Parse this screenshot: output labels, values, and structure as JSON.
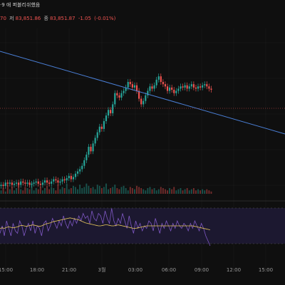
{
  "header": {
    "title": "·9 애 퍼블리쉬했음",
    "ohlc_prefix": "70",
    "close_label": "저",
    "close_value": "83,851.86",
    "last_label": "종",
    "last_value": "83,851.87",
    "change": "-1.05",
    "change_pct": "(-0.01%)"
  },
  "colors": {
    "background": "#0f0f0f",
    "up": "#26a69a",
    "down": "#ef5350",
    "trendline": "#4a7fd6",
    "rsi_line": "#7e57c2",
    "rsi_ma": "#e6c65a",
    "rsi_band": "#1c1830"
  },
  "chart_data": [
    {
      "type": "candlestick",
      "title": "",
      "x_tick_labels": [
        "15:00",
        "18:00",
        "21:00",
        "3월",
        "03:00",
        "06:00",
        "09:00",
        "12:00",
        "15:00"
      ],
      "price_series_close": [
        0.08,
        0.07,
        0.1,
        0.09,
        0.1,
        0.08,
        0.09,
        0.1,
        0.08,
        0.11,
        0.1,
        0.09,
        0.1,
        0.08,
        0.09,
        0.1,
        0.11,
        0.09,
        0.08,
        0.1,
        0.12,
        0.1,
        0.09,
        0.11,
        0.13,
        0.12,
        0.1,
        0.11,
        0.13,
        0.12,
        0.14,
        0.16,
        0.13,
        0.15,
        0.18,
        0.2,
        0.22,
        0.25,
        0.3,
        0.35,
        0.42,
        0.38,
        0.45,
        0.5,
        0.55,
        0.6,
        0.58,
        0.65,
        0.7,
        0.75,
        0.72,
        0.8,
        0.9,
        0.88,
        0.86,
        0.9,
        0.92,
        0.95,
        1.0,
        0.98,
        0.95,
        0.97,
        0.92,
        0.85,
        0.8,
        0.83,
        0.88,
        0.92,
        0.96,
        0.94,
        0.97,
        1.02,
        1.05,
        1.0,
        0.98,
        0.96,
        0.92,
        0.95,
        0.93,
        0.9,
        0.92,
        0.94,
        0.96,
        0.95,
        0.97,
        0.94,
        0.96,
        0.98,
        0.95,
        0.94,
        0.96,
        0.95,
        0.97,
        0.98,
        0.96,
        0.94,
        0.93
      ],
      "volume_series": [
        0.3,
        0.5,
        0.2,
        0.8,
        0.4,
        0.6,
        0.3,
        0.5,
        0.9,
        0.4,
        0.3,
        0.6,
        0.5,
        0.4,
        1.0,
        0.3,
        0.5,
        0.4,
        0.6,
        0.3,
        0.5,
        0.7,
        0.4,
        0.6,
        0.5,
        0.3,
        0.8,
        0.4,
        0.6,
        0.5,
        0.9,
        0.4,
        0.5,
        0.7,
        0.6,
        0.4,
        0.8,
        0.5,
        0.6,
        0.9,
        0.7,
        0.5,
        0.6,
        0.4,
        0.8,
        0.7,
        0.5,
        0.6,
        0.9,
        0.4,
        0.5,
        0.6,
        0.8,
        0.5,
        0.4,
        0.6,
        0.7,
        0.5,
        0.3,
        0.6,
        0.5,
        0.4,
        0.7,
        0.6,
        0.5,
        0.4,
        0.3,
        0.5,
        0.6,
        0.4,
        0.5,
        0.3,
        0.4,
        0.6,
        0.5,
        0.4,
        0.3,
        0.5,
        0.4,
        0.6,
        0.3,
        0.4,
        0.5,
        0.3,
        0.4,
        0.5,
        0.3,
        0.4,
        0.5,
        0.3,
        0.4,
        0.3,
        0.4,
        0.3,
        0.4,
        0.3,
        0.2
      ],
      "trendline": {
        "start": 0.82,
        "end": 0.53
      },
      "grid": true
    },
    {
      "type": "line",
      "title": "",
      "rsi_values": [
        0.35,
        0.5,
        0.3,
        0.6,
        0.45,
        0.3,
        0.55,
        0.4,
        0.35,
        0.6,
        0.5,
        0.3,
        0.45,
        0.55,
        0.4,
        0.6,
        0.35,
        0.5,
        0.45,
        0.3,
        0.55,
        0.6,
        0.4,
        0.5,
        0.65,
        0.55,
        0.45,
        0.6,
        0.5,
        0.7,
        0.55,
        0.45,
        0.6,
        0.5,
        0.65,
        0.55,
        0.7,
        0.6,
        0.75,
        0.65,
        0.7,
        0.55,
        0.8,
        0.65,
        0.6,
        0.75,
        0.7,
        0.55,
        0.8,
        0.65,
        0.55,
        0.85,
        0.6,
        0.5,
        0.65,
        0.55,
        0.75,
        0.6,
        0.45,
        0.7,
        0.5,
        0.35,
        0.6,
        0.45,
        0.55,
        0.4,
        0.5,
        0.45,
        0.6,
        0.55,
        0.4,
        0.65,
        0.5,
        0.35,
        0.55,
        0.45,
        0.6,
        0.5,
        0.4,
        0.55,
        0.45,
        0.6,
        0.5,
        0.45,
        0.55,
        0.5,
        0.4,
        0.55,
        0.45,
        0.6,
        0.5,
        0.4,
        0.55,
        0.45,
        0.3,
        0.2,
        0.1
      ],
      "rsi_ma": [
        0.45,
        0.46,
        0.45,
        0.47,
        0.48,
        0.47,
        0.46,
        0.47,
        0.48,
        0.5,
        0.51,
        0.5,
        0.49,
        0.5,
        0.51,
        0.52,
        0.51,
        0.5,
        0.49,
        0.5,
        0.52,
        0.54,
        0.55,
        0.56,
        0.58,
        0.59,
        0.6,
        0.61,
        0.62,
        0.63,
        0.64,
        0.65,
        0.66,
        0.65,
        0.64,
        0.63,
        0.62,
        0.6,
        0.58,
        0.56,
        0.55,
        0.54,
        0.53,
        0.52,
        0.51,
        0.5,
        0.5,
        0.51,
        0.52,
        0.52,
        0.51,
        0.5,
        0.5,
        0.51,
        0.52,
        0.51,
        0.5,
        0.49,
        0.48,
        0.47,
        0.46,
        0.45,
        0.45,
        0.46,
        0.47,
        0.48,
        0.49,
        0.5,
        0.5,
        0.5,
        0.5,
        0.5,
        0.5,
        0.5,
        0.5,
        0.5,
        0.5,
        0.5,
        0.5,
        0.5,
        0.5,
        0.5,
        0.5,
        0.5,
        0.5,
        0.5,
        0.5,
        0.5,
        0.5,
        0.49,
        0.48,
        0.47,
        0.46,
        0.45,
        0.44,
        0.43,
        0.42
      ],
      "bands": [
        30,
        70
      ]
    }
  ]
}
